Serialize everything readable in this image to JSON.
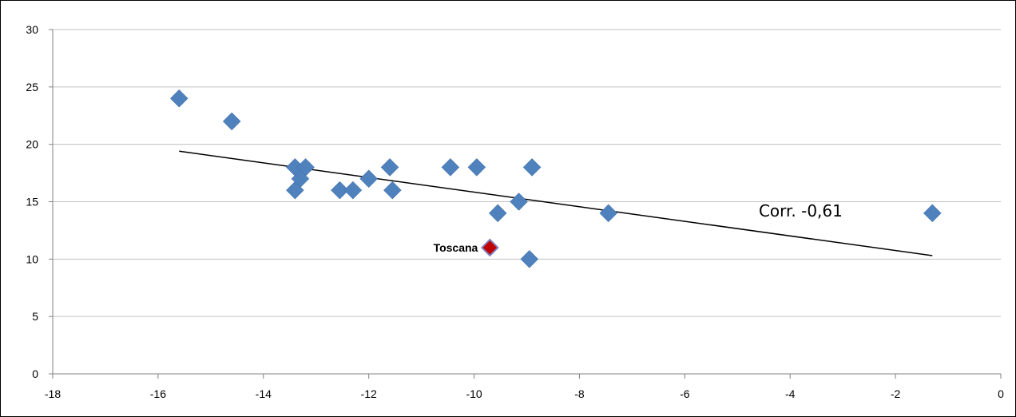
{
  "chart_data": {
    "type": "scatter",
    "title": "",
    "xlabel": "",
    "ylabel": "",
    "xlim": [
      -18,
      0
    ],
    "ylim": [
      0,
      30
    ],
    "x_ticks": [
      -18,
      -16,
      -14,
      -12,
      -10,
      -8,
      -6,
      -4,
      -2,
      0
    ],
    "y_ticks": [
      0,
      5,
      10,
      15,
      20,
      25,
      30
    ],
    "grid": "horizontal",
    "legend": "none",
    "points": [
      {
        "x": -15.6,
        "y": 24
      },
      {
        "x": -14.6,
        "y": 22
      },
      {
        "x": -13.4,
        "y": 18
      },
      {
        "x": -13.2,
        "y": 18
      },
      {
        "x": -13.3,
        "y": 17
      },
      {
        "x": -13.4,
        "y": 16
      },
      {
        "x": -12.55,
        "y": 16
      },
      {
        "x": -12.3,
        "y": 16
      },
      {
        "x": -12.0,
        "y": 17
      },
      {
        "x": -11.6,
        "y": 18
      },
      {
        "x": -11.55,
        "y": 16
      },
      {
        "x": -10.45,
        "y": 18
      },
      {
        "x": -9.95,
        "y": 18
      },
      {
        "x": -9.55,
        "y": 14
      },
      {
        "x": -9.15,
        "y": 15
      },
      {
        "x": -8.9,
        "y": 18
      },
      {
        "x": -8.95,
        "y": 10
      },
      {
        "x": -7.45,
        "y": 14
      },
      {
        "x": -1.3,
        "y": 14
      }
    ],
    "highlight": {
      "x": -9.7,
      "y": 11,
      "label": "Toscana",
      "color": "#c00000"
    },
    "trendline": {
      "x": [
        -15.6,
        -1.3
      ],
      "y": [
        19.4,
        10.3
      ]
    },
    "annotation": {
      "text": "Corr. -0,61",
      "x": -3.8,
      "y": 13.7
    },
    "colors": {
      "series": "#4f81bd",
      "gridline": "#c0c0c0",
      "trendline": "#000000"
    }
  }
}
